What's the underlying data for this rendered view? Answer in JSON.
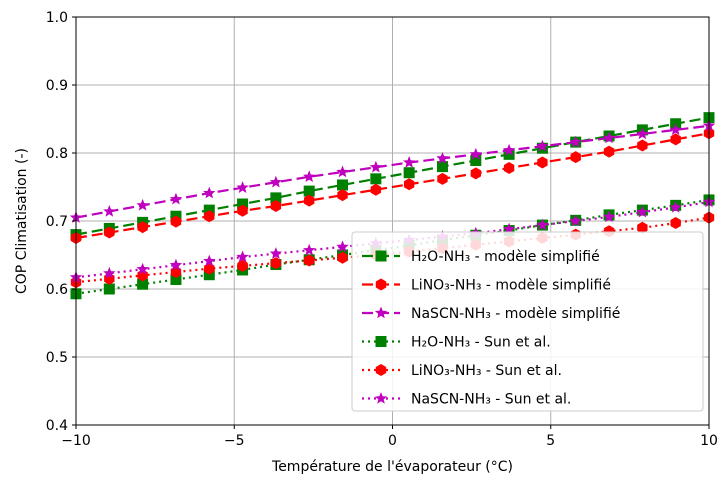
{
  "chart_data": {
    "type": "line",
    "xlabel": "Température de l'évaporateur (°C)",
    "ylabel": "COP Climatisation (-)",
    "xlim": [
      -10,
      10
    ],
    "ylim": [
      0.4,
      1.0
    ],
    "xticks": [
      -10,
      -5,
      0,
      5,
      10
    ],
    "yticks": [
      0.4,
      0.5,
      0.6,
      0.7,
      0.8,
      0.9,
      1.0
    ],
    "xtick_labels": [
      "−10",
      "−5",
      "0",
      "5",
      "10"
    ],
    "ytick_labels": [
      "0.4",
      "0.5",
      "0.6",
      "0.7",
      "0.8",
      "0.9",
      "1.0"
    ],
    "grid": true,
    "legend_position": "lower-right",
    "x": [
      -10,
      -8.947,
      -7.895,
      -6.842,
      -5.789,
      -4.737,
      -3.684,
      -2.632,
      -1.579,
      -0.526,
      0.526,
      1.579,
      2.632,
      3.684,
      4.737,
      5.789,
      6.842,
      7.895,
      8.947,
      10
    ],
    "series": [
      {
        "name": "H₂O-NH₃ - modèle simplifié",
        "color": "#008000",
        "linestyle": "dashed",
        "marker": "square",
        "values": [
          0.68,
          0.689,
          0.698,
          0.707,
          0.716,
          0.725,
          0.734,
          0.744,
          0.753,
          0.762,
          0.771,
          0.78,
          0.789,
          0.798,
          0.807,
          0.816,
          0.825,
          0.834,
          0.843,
          0.852
        ]
      },
      {
        "name": "LiNO₃-NH₃ - modèle simplifié",
        "color": "#ff0000",
        "linestyle": "dashed",
        "marker": "hexagon",
        "values": [
          0.675,
          0.683,
          0.691,
          0.699,
          0.707,
          0.715,
          0.722,
          0.73,
          0.738,
          0.746,
          0.754,
          0.762,
          0.77,
          0.778,
          0.786,
          0.794,
          0.802,
          0.811,
          0.82,
          0.829
        ]
      },
      {
        "name": "NaSCN-NH₃ - modèle simplifié",
        "color": "#bf00bf",
        "linestyle": "dashed",
        "marker": "star",
        "values": [
          0.705,
          0.714,
          0.723,
          0.732,
          0.741,
          0.749,
          0.757,
          0.765,
          0.772,
          0.779,
          0.786,
          0.792,
          0.798,
          0.804,
          0.81,
          0.816,
          0.822,
          0.828,
          0.834,
          0.84
        ]
      },
      {
        "name": "H₂O-NH₃ - Sun et al.",
        "color": "#008000",
        "linestyle": "dotted",
        "marker": "square",
        "values": [
          0.593,
          0.6,
          0.607,
          0.614,
          0.621,
          0.628,
          0.636,
          0.643,
          0.65,
          0.657,
          0.664,
          0.672,
          0.679,
          0.686,
          0.694,
          0.701,
          0.709,
          0.716,
          0.723,
          0.731
        ]
      },
      {
        "name": "LiNO₃-NH₃ - Sun et al.",
        "color": "#ff0000",
        "linestyle": "dotted",
        "marker": "hexagon",
        "values": [
          0.61,
          0.615,
          0.62,
          0.625,
          0.63,
          0.634,
          0.638,
          0.642,
          0.646,
          0.65,
          0.655,
          0.66,
          0.665,
          0.67,
          0.675,
          0.68,
          0.685,
          0.69,
          0.697,
          0.705
        ]
      },
      {
        "name": "NaSCN-NH₃ - Sun et al.",
        "color": "#bf00bf",
        "linestyle": "dotted",
        "marker": "star",
        "values": [
          0.617,
          0.623,
          0.629,
          0.635,
          0.641,
          0.647,
          0.652,
          0.657,
          0.662,
          0.667,
          0.672,
          0.677,
          0.682,
          0.688,
          0.694,
          0.7,
          0.706,
          0.713,
          0.72,
          0.728
        ]
      }
    ]
  }
}
